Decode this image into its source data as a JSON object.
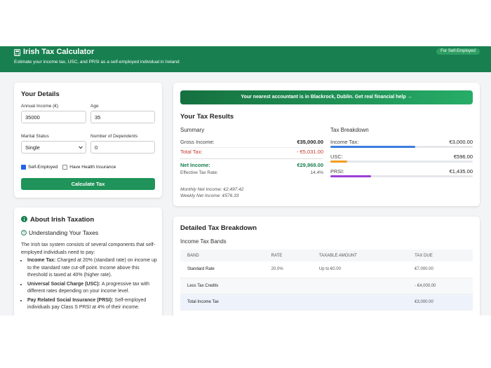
{
  "header": {
    "title": "Irish Tax Calculator",
    "subtitle": "Estimate your income tax, USC, and PRSI as a self-employed individual in Ireland",
    "badge": "For Self-Employed"
  },
  "details": {
    "title": "Your Details",
    "fields": [
      {
        "label": "Annual Income (€)",
        "value": "35000"
      },
      {
        "label": "Age",
        "value": "35"
      },
      {
        "label": "Marital Status",
        "value": "Single"
      },
      {
        "label": "Number of Dependents",
        "value": "0"
      }
    ],
    "checkboxes": [
      {
        "label": "Self-Employed",
        "checked": true
      },
      {
        "label": "Have Health Insurance",
        "checked": false
      }
    ],
    "button": "Calculate Tax"
  },
  "about": {
    "title": "About Irish Taxation",
    "subtitle": "Understanding Your Taxes",
    "intro": "The Irish tax system consists of several components that self-employed individuals need to pay:",
    "items": [
      {
        "term": "Income Tax:",
        "text": "Charged at 20% (standard rate) on income up to the standard rate cut-off point. Income above this threshold is taxed at 40% (higher rate)."
      },
      {
        "term": "Universal Social Charge (USC):",
        "text": "A progressive tax with different rates depending on your income level."
      },
      {
        "term": "Pay Related Social Insurance (PRSI):",
        "text": "Self-employed individuals pay Class S PRSI at 4% of their income."
      }
    ]
  },
  "results": {
    "banner": "Your nearest accountant is in Blackrock, Dublin. Get real financial help →",
    "title": "Your Tax Results",
    "summary": {
      "title": "Summary",
      "gross": {
        "label": "Gross Income:",
        "value": "€35,000.00"
      },
      "total_tax": {
        "label": "Total Tax:",
        "amount": {
          "value": 5031,
          "label": "- €5,031.00"
        }
      },
      "net": {
        "label": "Net Income:",
        "value": "€29,969.00"
      },
      "rate": {
        "label": "Effective Tax Rate:",
        "value": "14.4%"
      },
      "monthly": "Monthly Net Income: €2,497.42",
      "weekly": "Weekly Net Income: €576.33"
    },
    "breakdown": {
      "title": "Tax Breakdown",
      "items": [
        {
          "name": "Income Tax:",
          "amount": {
            "value": 3000,
            "label": "€3,000.00"
          },
          "color": "#3b7ddd"
        },
        {
          "name": "USC:",
          "amount": {
            "value": 596,
            "label": "€596.00"
          },
          "color": "#f29d1f"
        },
        {
          "name": "PRSI:",
          "amount": {
            "value": 1435,
            "label": "€1,435.00"
          },
          "color": "#9b3fd6"
        }
      ]
    }
  },
  "detailed": {
    "title": "Detailed Tax Breakdown",
    "subtitle": "Income Tax Bands",
    "columns": [
      "BAND",
      "RATE",
      "TAXABLE AMOUNT",
      "TAX DUE"
    ],
    "rows": [
      [
        "Standard Rate",
        "20.0%",
        "Up to €0.00",
        "€7,000.00"
      ],
      [
        "Less Tax Credits",
        null,
        null,
        "- €4,000.00"
      ],
      [
        "Total Income Tax",
        null,
        null,
        "€3,000.00"
      ]
    ]
  }
}
